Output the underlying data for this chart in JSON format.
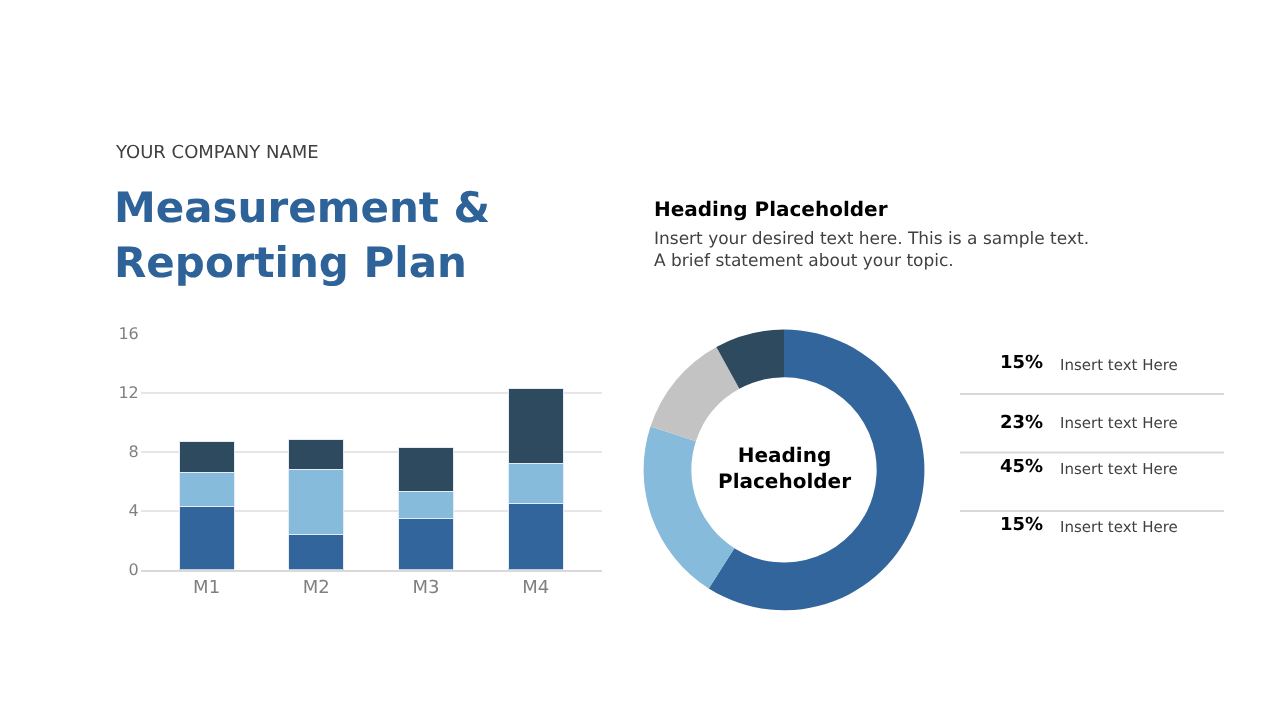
{
  "chart_data": [
    {
      "type": "bar",
      "stacked": true,
      "categories": [
        "M1",
        "M2",
        "M3",
        "M4"
      ],
      "series": [
        {
          "color": "#31659b",
          "values": [
            4.3,
            2.4,
            3.5,
            4.5
          ]
        },
        {
          "color": "#86bbdb",
          "values": [
            2.3,
            4.4,
            1.8,
            2.7
          ]
        },
        {
          "color": "#2e4a5e",
          "values": [
            2.1,
            2.0,
            3.0,
            5.1
          ]
        }
      ],
      "ylim": [
        0,
        16
      ],
      "yticks": [
        0,
        4,
        8,
        12,
        16
      ],
      "grid": "y",
      "legend": false,
      "title": "Measurement &\nReporting Plan",
      "annotations": [
        "YOUR COMPANY NAME"
      ]
    },
    {
      "type": "donut",
      "categories": [
        null,
        null,
        null,
        null
      ],
      "values": [
        59,
        21,
        12,
        8
      ],
      "colors": [
        "#31659b",
        "#86bbdb",
        "#c3c3c3",
        "#2e4a5e"
      ],
      "legend": false,
      "title": "Heading Placeholder",
      "subtitle": "Insert your desired text here. This is a sample text.\nA brief statement about your topic.",
      "annotations": [
        "Heading\nPlaceholder",
        "15%",
        "Insert text Here",
        "23%",
        "Insert text Here",
        "45%",
        "Insert text Here",
        "15%",
        "Insert text Here"
      ]
    }
  ]
}
